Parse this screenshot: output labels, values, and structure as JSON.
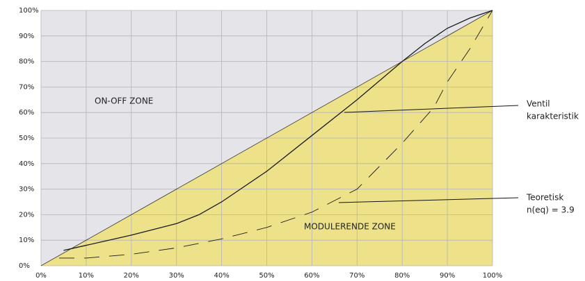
{
  "chart_data": {
    "type": "line",
    "xlim": [
      0,
      100
    ],
    "ylim": [
      0,
      100
    ],
    "xticks": [
      {
        "value": 0,
        "label": "0%"
      },
      {
        "value": 10,
        "label": "10%"
      },
      {
        "value": 20,
        "label": "20%"
      },
      {
        "value": 30,
        "label": "30%"
      },
      {
        "value": 40,
        "label": "40%"
      },
      {
        "value": 50,
        "label": "50%"
      },
      {
        "value": 60,
        "label": "60%"
      },
      {
        "value": 70,
        "label": "70%"
      },
      {
        "value": 80,
        "label": "80%"
      },
      {
        "value": 90,
        "label": "90%"
      },
      {
        "value": 100,
        "label": "100%"
      }
    ],
    "yticks": [
      {
        "value": 0,
        "label": "0%"
      },
      {
        "value": 10,
        "label": "10%"
      },
      {
        "value": 20,
        "label": "20%"
      },
      {
        "value": 30,
        "label": "30%"
      },
      {
        "value": 40,
        "label": "40%"
      },
      {
        "value": 50,
        "label": "50%"
      },
      {
        "value": 60,
        "label": "60%"
      },
      {
        "value": 70,
        "label": "70%"
      },
      {
        "value": 80,
        "label": "80%"
      },
      {
        "value": 90,
        "label": "90%"
      },
      {
        "value": 100,
        "label": "100%"
      }
    ],
    "grid": true,
    "series": [
      {
        "color": "#1a1a1a",
        "dashed": false,
        "x": [
          5,
          10,
          20,
          30,
          35,
          40,
          50,
          60,
          70,
          80,
          85,
          90,
          95,
          100
        ],
        "values": [
          6,
          8,
          12,
          16.5,
          20,
          25,
          37,
          51,
          65,
          80,
          87,
          93,
          97,
          100
        ]
      },
      {
        "color": "#1a1a1a",
        "dashed": true,
        "x": [
          4,
          10,
          20,
          30,
          40,
          50,
          60,
          70,
          75,
          80,
          87,
          90,
          95,
          100
        ],
        "values": [
          3,
          3,
          4.5,
          7,
          10.5,
          15,
          21,
          30,
          39,
          48,
          62,
          72,
          85,
          100
        ]
      }
    ],
    "annotations": {
      "on_off": "ON-OFF ZONE",
      "modulating": "MODULERENDE ZONE",
      "valve": [
        "Ventil",
        "karakteristik"
      ],
      "theory": [
        "Teoretisk",
        "n(eq) = 3.9"
      ]
    }
  }
}
